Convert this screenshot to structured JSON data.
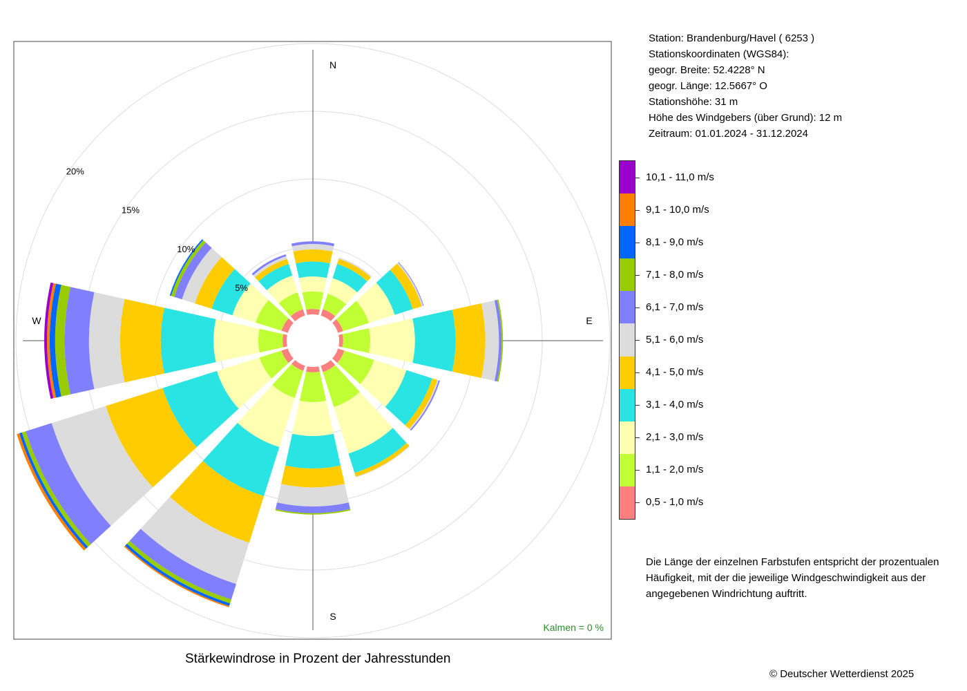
{
  "station": {
    "line1": "Station:  Brandenburg/Havel  ( 6253 )",
    "line2": "Stationskoordinaten (WGS84):",
    "line3": "geogr. Breite: 52.4228° N",
    "line4": "geogr. Länge: 12.5667° O",
    "line5": "Stationshöhe: 31 m",
    "line6": "Höhe des Windgebers (über Grund): 12 m",
    "line7": "Zeitraum: 01.01.2024 - 31.12.2024"
  },
  "explanation": "Die Länge der einzelnen Farbstufen entspricht der prozentualen Häufigkeit, mit der die jeweilige Windgeschwindigkeit aus der angegebenen Windrichtung auftritt.",
  "copyright": "© Deutscher Wetterdienst  2025",
  "chart_data": {
    "type": "windrose",
    "title": "Stärkewindrose in Prozent der Jahresstunden",
    "unit": "%",
    "rlim": [
      0,
      20
    ],
    "ring_labels": [
      "5%",
      "10%",
      "15%",
      "20%"
    ],
    "ring_values": [
      5,
      10,
      15,
      20
    ],
    "calm": "Kalmen  =  0 %",
    "compass_labels": {
      "N": "N",
      "E": "E",
      "S": "S",
      "W": "W"
    },
    "directions": [
      0,
      30,
      60,
      90,
      120,
      150,
      180,
      210,
      240,
      270,
      300,
      330
    ],
    "speed_classes": [
      {
        "label": "0,5 - 1,0 m/s",
        "color": "#ff7f7f"
      },
      {
        "label": "1,1 - 2,0 m/s",
        "color": "#bfff33"
      },
      {
        "label": "2,1 - 3,0 m/s",
        "color": "#ffffb2"
      },
      {
        "label": "3,1 - 4,0 m/s",
        "color": "#2ae4e4"
      },
      {
        "label": "4,1 - 5,0 m/s",
        "color": "#ffcc00"
      },
      {
        "label": "5,1 - 6,0 m/s",
        "color": "#dcdcdc"
      },
      {
        "label": "6,1 - 7,0 m/s",
        "color": "#8080ff"
      },
      {
        "label": "7,1 - 8,0 m/s",
        "color": "#99cc00"
      },
      {
        "label": "8,1 - 9,0 m/s",
        "color": "#0066ff"
      },
      {
        "label": "9,1 - 10,0 m/s",
        "color": "#ff8000"
      },
      {
        "label": "10,1 - 11,0 m/s",
        "color": "#9900cc"
      }
    ],
    "values": [
      [
        0.4,
        1.3,
        1.1,
        1.1,
        0.9,
        0.4,
        0.2,
        0.0,
        0.0,
        0.0,
        0.0
      ],
      [
        0.5,
        1.2,
        1.2,
        1.1,
        0.4,
        0.1,
        0.0,
        0.0,
        0.0,
        0.0,
        0.0
      ],
      [
        0.4,
        2.0,
        2.0,
        1.4,
        0.7,
        0.1,
        0.05,
        0.0,
        0.0,
        0.0,
        0.0
      ],
      [
        0.3,
        2.0,
        3.3,
        3.0,
        2.2,
        1.0,
        0.2,
        0.1,
        0.0,
        0.0,
        0.0
      ],
      [
        0.5,
        2.3,
        2.5,
        2.0,
        0.4,
        0.1,
        0.1,
        0.0,
        0.0,
        0.0,
        0.0
      ],
      [
        0.5,
        2.7,
        3.6,
        1.5,
        0.3,
        0.05,
        0.0,
        0.0,
        0.0,
        0.0,
        0.0
      ],
      [
        0.4,
        2.2,
        2.5,
        2.4,
        1.4,
        1.4,
        0.5,
        0.1,
        0.0,
        0.0,
        0.0
      ],
      [
        0.4,
        2.1,
        3.8,
        3.8,
        3.6,
        3.2,
        1.2,
        0.3,
        0.2,
        0.1,
        0.0
      ],
      [
        0.5,
        1.7,
        3.3,
        4.2,
        4.4,
        4.2,
        2.0,
        0.3,
        0.2,
        0.2,
        0.0
      ],
      [
        0.3,
        1.8,
        3.3,
        3.9,
        3.0,
        2.3,
        1.8,
        0.7,
        0.4,
        0.2,
        0.2
      ],
      [
        0.5,
        2.0,
        1.8,
        1.6,
        1.3,
        1.0,
        0.6,
        0.25,
        0.1,
        0.0,
        0.0
      ],
      [
        0.5,
        1.3,
        1.3,
        0.9,
        0.4,
        0.2,
        0.15,
        0.0,
        0.0,
        0.0,
        0.0
      ]
    ]
  }
}
